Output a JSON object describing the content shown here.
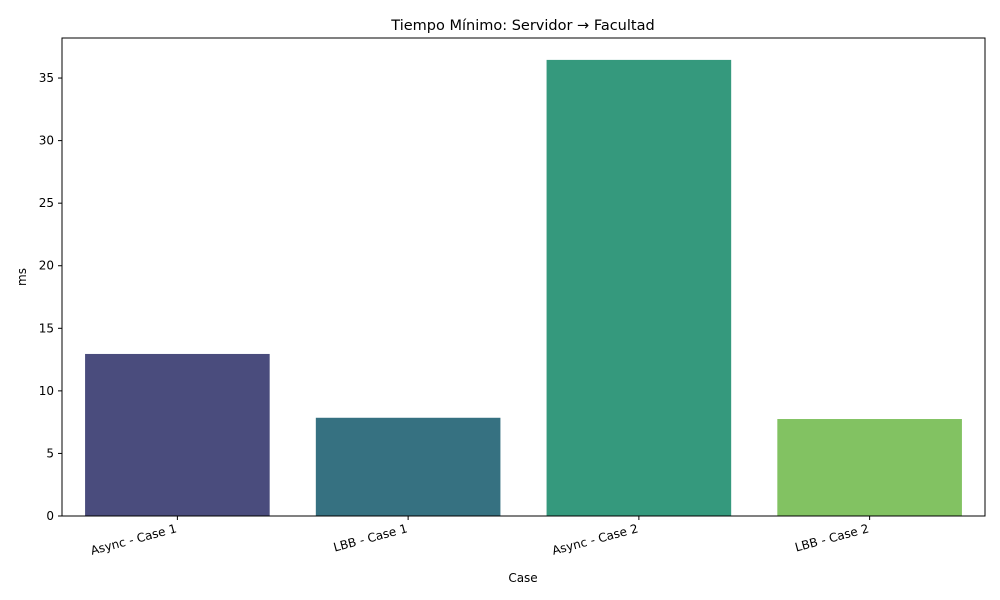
{
  "chart_data": {
    "type": "bar",
    "title": "Tiempo Mínimo: Servidor → Facultad",
    "xlabel": "Case",
    "ylabel": "ms",
    "categories": [
      "Async - Case 1",
      "LBB - Case 1",
      "Async - Case 2",
      "LBB - Case 2"
    ],
    "values": [
      12.95,
      7.85,
      36.45,
      7.75
    ],
    "colors": [
      "#4a4c7d",
      "#367181",
      "#35997d",
      "#82c262"
    ],
    "ylim": [
      0,
      38.2
    ],
    "yticks": [
      "0",
      "5",
      "10",
      "15",
      "20",
      "25",
      "30",
      "35"
    ],
    "grid": false,
    "legend": "none"
  }
}
